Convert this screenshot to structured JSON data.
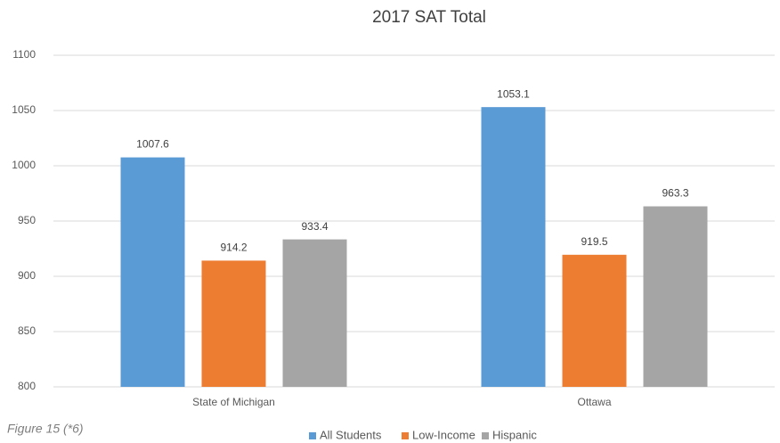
{
  "chart_data": {
    "type": "bar",
    "title": "2017 SAT Total",
    "categories": [
      "State of Michigan",
      "Ottawa"
    ],
    "series": [
      {
        "name": "All Students",
        "color": "#5b9bd5",
        "values": [
          1007.6,
          1053.1
        ]
      },
      {
        "name": "Low-Income",
        "color": "#ed7d31",
        "values": [
          914.2,
          919.5
        ]
      },
      {
        "name": "Hispanic",
        "color": "#a5a5a5",
        "values": [
          933.4,
          963.3
        ]
      }
    ],
    "ylim": [
      800,
      1100
    ],
    "yticks": [
      800,
      850,
      900,
      950,
      1000,
      1050,
      1100
    ],
    "grid": true,
    "legend": "bottom"
  },
  "caption": "Figure 15 (*6)"
}
